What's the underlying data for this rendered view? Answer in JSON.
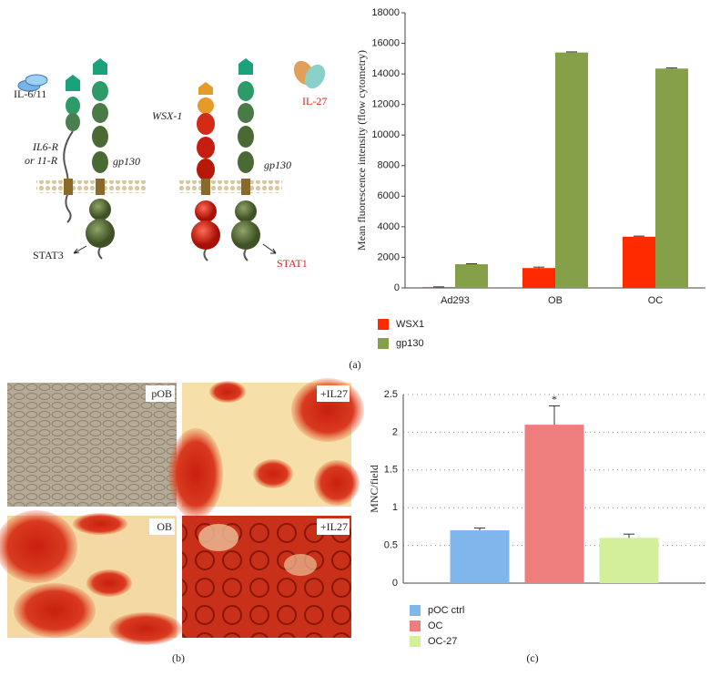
{
  "panel_labels": [
    "(a)",
    "(b)",
    "(c)"
  ],
  "diagram": {
    "ligand_left": "IL-6/11",
    "receptor_left": "IL6-R",
    "receptor_left_alt": "or 11-R",
    "gp130_left": "gp130",
    "signal_left": "STAT3",
    "receptor_right": "WSX-1",
    "gp130_right": "gp130",
    "ligand_right": "IL-27",
    "signal_right": "STAT1"
  },
  "images": [
    "pOB",
    "+IL27",
    "OB",
    "+IL27"
  ],
  "chart_data": [
    {
      "type": "bar",
      "ylabel": "Mean fluorescence intensity (flow cytometry)",
      "categories": [
        "Ad293",
        "OB",
        "OC"
      ],
      "series": [
        {
          "name": "WSX1",
          "color": "#ff2a00",
          "values": [
            50,
            1300,
            3350
          ],
          "errors": [
            20,
            60,
            40
          ]
        },
        {
          "name": "gp130",
          "color": "#86a04a",
          "values": [
            1550,
            15400,
            14350
          ],
          "errors": [
            30,
            40,
            40
          ]
        }
      ],
      "ylim": [
        0,
        18000
      ],
      "yticks": [
        0,
        2000,
        4000,
        6000,
        8000,
        10000,
        12000,
        14000,
        16000,
        18000
      ],
      "grid": false
    },
    {
      "type": "bar",
      "ylabel": "MNC/field",
      "annotation": "*",
      "categories": [
        null
      ],
      "series": [
        {
          "name": "pOC ctrl",
          "color": "#7fb6ec",
          "values": [
            0.7
          ],
          "errors": [
            0.03
          ]
        },
        {
          "name": "OC",
          "color": "#ee7d7d",
          "values": [
            2.1
          ],
          "errors": [
            0.25
          ]
        },
        {
          "name": "OC-27",
          "color": "#d4ef9a",
          "values": [
            0.6
          ],
          "errors": [
            0.05
          ]
        }
      ],
      "ylim": [
        0,
        2.5
      ],
      "yticks": [
        0,
        0.5,
        1,
        1.5,
        2,
        2.5
      ],
      "grid": true
    }
  ]
}
